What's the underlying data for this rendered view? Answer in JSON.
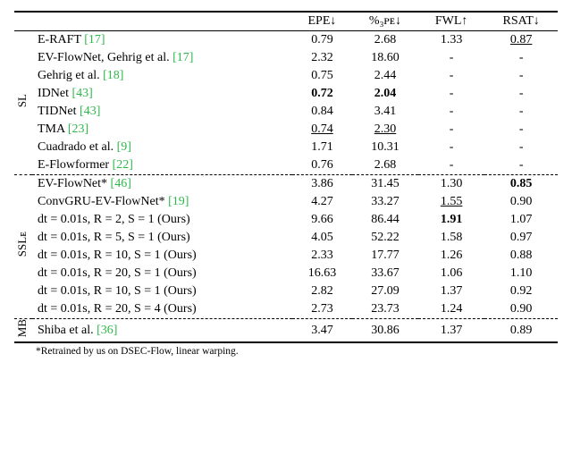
{
  "columns": {
    "epe": "EPE↓",
    "pct3pe": "%₃ᴘᴇ↓",
    "fwl": "FWL↑",
    "rsat": "RSAT↓"
  },
  "groups": {
    "sl": {
      "label": "SL"
    },
    "ssle": {
      "label": "SSLᴇ"
    },
    "mb": {
      "label": "MB"
    }
  },
  "rows": {
    "sl": [
      {
        "method": "E-RAFT ",
        "cite": "[17]",
        "epe": "0.79",
        "p3": "2.68",
        "fwl": "1.33",
        "rsat": "0.87",
        "rsat_ul": true
      },
      {
        "method": "EV-FlowNet, Gehrig et al. ",
        "cite": "[17]",
        "epe": "2.32",
        "p3": "18.60",
        "fwl": "-",
        "rsat": "-"
      },
      {
        "method": "Gehrig et al. ",
        "cite": "[18]",
        "epe": "0.75",
        "p3": "2.44",
        "fwl": "-",
        "rsat": "-"
      },
      {
        "method": "IDNet ",
        "cite": "[43]",
        "epe": "0.72",
        "epe_bold": true,
        "p3": "2.04",
        "p3_bold": true,
        "fwl": "-",
        "rsat": "-"
      },
      {
        "method": "TIDNet ",
        "cite": "[43]",
        "epe": "0.84",
        "p3": "3.41",
        "fwl": "-",
        "rsat": "-"
      },
      {
        "method": "TMA ",
        "cite": "[23]",
        "epe": "0.74",
        "epe_ul": true,
        "p3": "2.30",
        "p3_ul": true,
        "fwl": "-",
        "rsat": "-"
      },
      {
        "method": "Cuadrado et al. ",
        "cite": "[9]",
        "epe": "1.71",
        "p3": "10.31",
        "fwl": "-",
        "rsat": "-"
      },
      {
        "method": "E-Flowformer ",
        "cite": "[22]",
        "epe": "0.76",
        "p3": "2.68",
        "fwl": "-",
        "rsat": "-"
      }
    ],
    "ssle": [
      {
        "method": "EV-FlowNet* ",
        "cite": "[46]",
        "epe": "3.86",
        "p3": "31.45",
        "fwl": "1.30",
        "rsat": "0.85",
        "rsat_bold": true
      },
      {
        "method": "ConvGRU-EV-FlowNet* ",
        "cite": "[19]",
        "epe": "4.27",
        "p3": "33.27",
        "fwl": "1.55",
        "fwl_ul": true,
        "rsat": "0.90"
      },
      {
        "method": "dt = 0.01s, R = 2, S = 1 (Ours)",
        "cite": "",
        "epe": "9.66",
        "p3": "86.44",
        "fwl": "1.91",
        "fwl_bold": true,
        "rsat": "1.07"
      },
      {
        "method": "dt = 0.01s, R = 5, S = 1 (Ours)",
        "cite": "",
        "epe": "4.05",
        "p3": "52.22",
        "fwl": "1.58",
        "rsat": "0.97"
      },
      {
        "method": "dt = 0.01s, R = 10, S = 1 (Ours)",
        "cite": "",
        "epe": "2.33",
        "p3": "17.77",
        "fwl": "1.26",
        "rsat": "0.88"
      },
      {
        "method": "dt = 0.01s, R = 20, S = 1 (Ours)",
        "cite": "",
        "epe": "16.63",
        "p3": "33.67",
        "fwl": "1.06",
        "rsat": "1.10"
      },
      {
        "method": "dt = 0.01s, R = 10, S = 1 (Ours)",
        "cite": "",
        "epe": "2.82",
        "p3": "27.09",
        "fwl": "1.37",
        "rsat": "0.92"
      },
      {
        "method": "dt = 0.01s, R = 20, S = 4 (Ours)",
        "cite": "",
        "epe": "2.73",
        "p3": "23.73",
        "fwl": "1.24",
        "rsat": "0.90"
      }
    ],
    "mb": [
      {
        "method": "Shiba et al. ",
        "cite": "[36]",
        "epe": "3.47",
        "p3": "30.86",
        "fwl": "1.37",
        "rsat": "0.89"
      }
    ]
  },
  "footnote": "*Retrained by us on DSEC-Flow, linear warping."
}
